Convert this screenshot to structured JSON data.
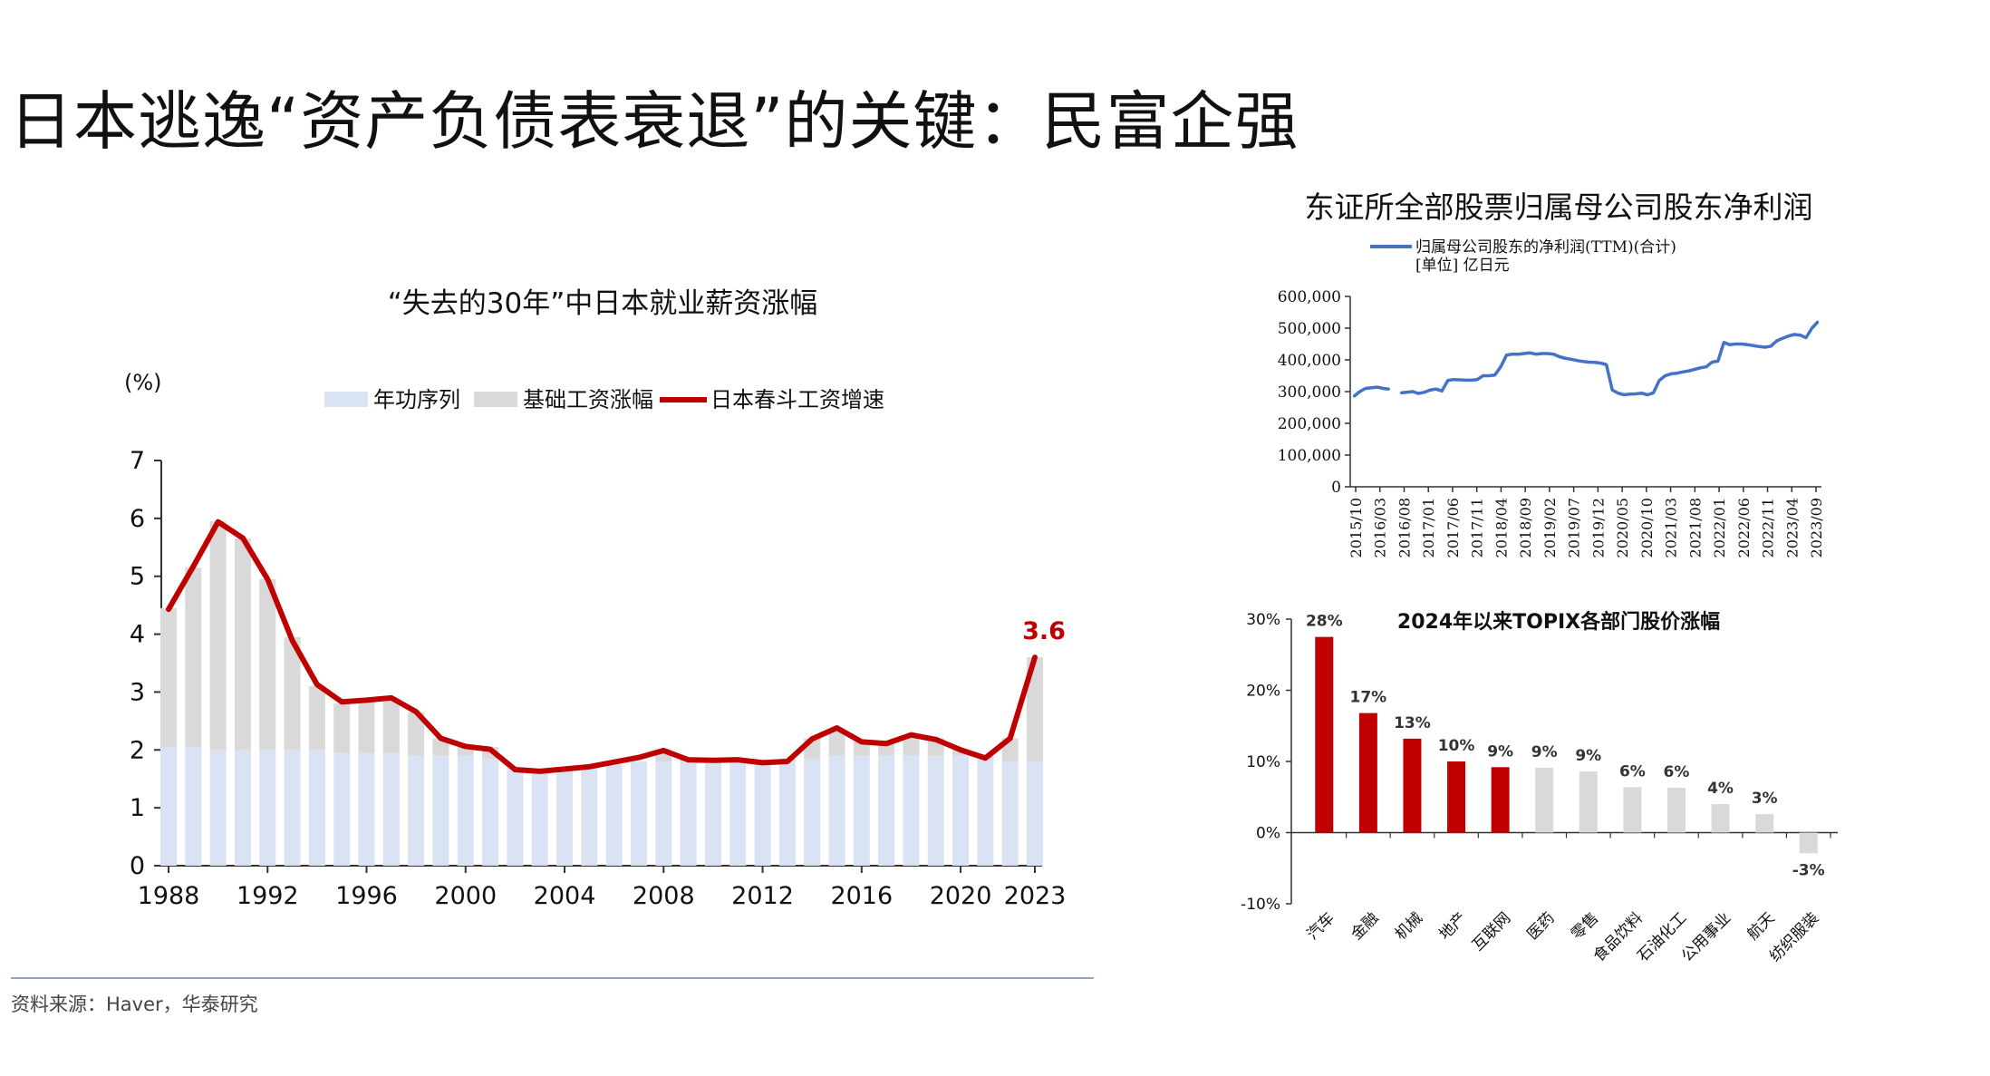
{
  "title": "日本逃逸“资产负债表衰退”的关键：民富企强",
  "source": "资料来源：Haver，华泰研究",
  "colors": {
    "red": "#c00000",
    "gray": "#d9d9d9",
    "lightblue": "#dae3f3",
    "blue": "#4472c4"
  },
  "chart_data": [
    {
      "type": "bar",
      "title": "“失去的30年”中日本就业薪资涨幅",
      "ylabel": "(%)",
      "ylim": [
        0,
        7
      ],
      "yticks": [
        0,
        1,
        2,
        3,
        4,
        5,
        6,
        7
      ],
      "x_tick_labels": [
        "1988",
        "1992",
        "1996",
        "2000",
        "2004",
        "2008",
        "2012",
        "2016",
        "2020",
        "2023"
      ],
      "legend": [
        "年功序列",
        "基础工资涨幅",
        "日本春斗工资增速"
      ],
      "annotation": "3.6",
      "years": [
        1988,
        1989,
        1990,
        1991,
        1992,
        1993,
        1994,
        1995,
        1996,
        1997,
        1998,
        1999,
        2000,
        2001,
        2002,
        2003,
        2004,
        2005,
        2006,
        2007,
        2008,
        2009,
        2010,
        2011,
        2012,
        2013,
        2014,
        2015,
        2016,
        2017,
        2018,
        2019,
        2020,
        2021,
        2022,
        2023
      ],
      "series": [
        {
          "name": "年功序列",
          "stack": "bar",
          "values": [
            2.05,
            2.05,
            2.0,
            2.0,
            2.0,
            2.0,
            2.0,
            1.95,
            1.95,
            1.95,
            1.9,
            1.9,
            1.9,
            1.85,
            1.7,
            1.65,
            1.65,
            1.7,
            1.75,
            1.8,
            1.8,
            1.8,
            1.8,
            1.8,
            1.8,
            1.8,
            1.85,
            1.9,
            1.9,
            1.9,
            1.9,
            1.9,
            1.9,
            1.85,
            1.8,
            1.8
          ]
        },
        {
          "name": "基础工资涨幅",
          "stack": "bar",
          "values": [
            2.4,
            3.1,
            3.95,
            3.65,
            2.95,
            1.95,
            1.1,
            0.85,
            0.9,
            0.95,
            0.75,
            0.3,
            0.15,
            0.2,
            0,
            0,
            0,
            0,
            0,
            0,
            0.2,
            0.05,
            0,
            0.05,
            0,
            0.05,
            0.35,
            0.45,
            0.25,
            0.2,
            0.35,
            0.3,
            0.1,
            0.05,
            0.4,
            1.8
          ]
        },
        {
          "name": "日本春斗工资增速",
          "type": "line",
          "values": [
            4.43,
            5.17,
            5.94,
            5.66,
            4.95,
            3.89,
            3.13,
            2.83,
            2.86,
            2.9,
            2.66,
            2.2,
            2.06,
            2.01,
            1.66,
            1.63,
            1.67,
            1.71,
            1.79,
            1.87,
            1.99,
            1.83,
            1.82,
            1.83,
            1.78,
            1.8,
            2.19,
            2.38,
            2.14,
            2.11,
            2.26,
            2.18,
            2.0,
            1.86,
            2.2,
            3.6
          ]
        }
      ]
    },
    {
      "type": "line",
      "title": "东证所全部股票归属母公司股东净利润",
      "legend": [
        "归属母公司股东的净利润(TTM)(合计)"
      ],
      "unit_label": "[单位] 亿日元",
      "ylim": [
        0,
        600000
      ],
      "yticks": [
        "0",
        "100,000",
        "200,000",
        "300,000",
        "400,000",
        "500,000",
        "600,000"
      ],
      "x_tick_labels": [
        "2015/10",
        "2016/03",
        "2016/08",
        "2017/01",
        "2017/06",
        "2017/11",
        "2018/04",
        "2018/09",
        "2019/02",
        "2019/07",
        "2019/12",
        "2020/05",
        "2020/10",
        "2021/03",
        "2021/08",
        "2022/01",
        "2022/06",
        "2022/11",
        "2023/04",
        "2023/09"
      ],
      "series": [
        {
          "name": "归属母公司股东的净利润(TTM)(合计)",
          "values": [
            285000,
            300000,
            310000,
            312000,
            314000,
            310000,
            308000,
            null,
            296000,
            298000,
            300000,
            294000,
            298000,
            305000,
            308000,
            302000,
            335000,
            338000,
            337000,
            336000,
            336000,
            338000,
            350000,
            350000,
            352000,
            378000,
            415000,
            418000,
            418000,
            420000,
            422000,
            418000,
            420000,
            420000,
            418000,
            410000,
            405000,
            402000,
            398000,
            395000,
            393000,
            392000,
            390000,
            385000,
            305000,
            295000,
            290000,
            292000,
            293000,
            295000,
            290000,
            296000,
            335000,
            350000,
            356000,
            358000,
            362000,
            365000,
            370000,
            375000,
            378000,
            393000,
            396000,
            455000,
            448000,
            450000,
            450000,
            448000,
            445000,
            442000,
            440000,
            443000,
            460000,
            468000,
            475000,
            480000,
            478000,
            470000,
            500000,
            520000
          ]
        }
      ]
    },
    {
      "type": "bar",
      "title": "2024年以来TOPIX各部门股价涨幅",
      "ylim": [
        -10,
        30
      ],
      "yticks": [
        "-10%",
        "0%",
        "10%",
        "20%",
        "30%"
      ],
      "categories": [
        "汽车",
        "金融",
        "机械",
        "地产",
        "互联网",
        "医药",
        "零售",
        "食品饮料",
        "石油化工",
        "公用事业",
        "航天",
        "纺织服装"
      ],
      "values": [
        27.5,
        16.8,
        13.2,
        10.0,
        9.2,
        9.1,
        8.6,
        6.4,
        6.3,
        4.0,
        2.6,
        -2.9
      ],
      "labels": [
        "28%",
        "17%",
        "13%",
        "10%",
        "9%",
        "9%",
        "9%",
        "6%",
        "6%",
        "4%",
        "3%",
        "-3%"
      ],
      "highlight_count": 5
    }
  ]
}
